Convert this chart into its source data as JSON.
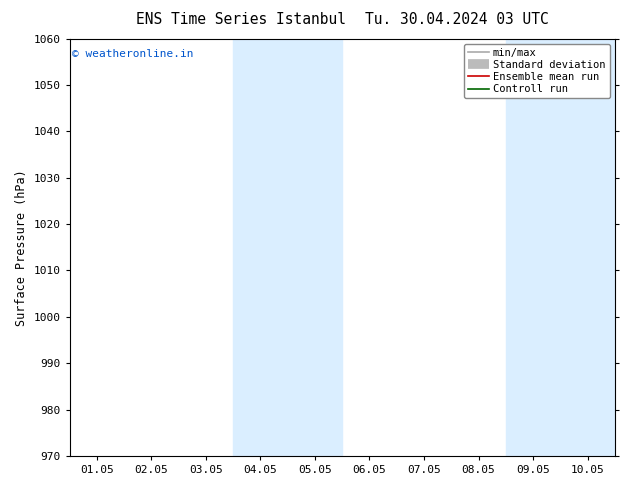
{
  "title_left": "ENS Time Series Istanbul",
  "title_right": "Tu. 30.04.2024 03 UTC",
  "ylabel": "Surface Pressure (hPa)",
  "ylim": [
    970,
    1060
  ],
  "yticks": [
    970,
    980,
    990,
    1000,
    1010,
    1020,
    1030,
    1040,
    1050,
    1060
  ],
  "xtick_labels": [
    "01.05",
    "02.05",
    "03.05",
    "04.05",
    "05.05",
    "06.05",
    "07.05",
    "08.05",
    "09.05",
    "10.05"
  ],
  "shade_bands": [
    {
      "xstart": 3.5,
      "xend": 4.5,
      "color": "#daeeff"
    },
    {
      "xstart": 4.5,
      "xend": 5.5,
      "color": "#daeeff"
    },
    {
      "xstart": 8.5,
      "xend": 9.5,
      "color": "#daeeff"
    },
    {
      "xstart": 9.5,
      "xend": 10.5,
      "color": "#daeeff"
    }
  ],
  "watermark": "© weatheronline.in",
  "watermark_color": "#0055cc",
  "legend_items": [
    {
      "label": "min/max",
      "color": "#aaaaaa",
      "lw": 1.2,
      "ls": "-"
    },
    {
      "label": "Standard deviation",
      "color": "#bbbbbb",
      "lw": 7,
      "ls": "-"
    },
    {
      "label": "Ensemble mean run",
      "color": "#cc0000",
      "lw": 1.2,
      "ls": "-"
    },
    {
      "label": "Controll run",
      "color": "#006600",
      "lw": 1.2,
      "ls": "-"
    }
  ],
  "bg_color": "#ffffff",
  "plot_bg_color": "#ffffff",
  "title_fontsize": 10.5,
  "tick_fontsize": 8,
  "ylabel_fontsize": 8.5,
  "watermark_fontsize": 8,
  "legend_fontsize": 7.5
}
